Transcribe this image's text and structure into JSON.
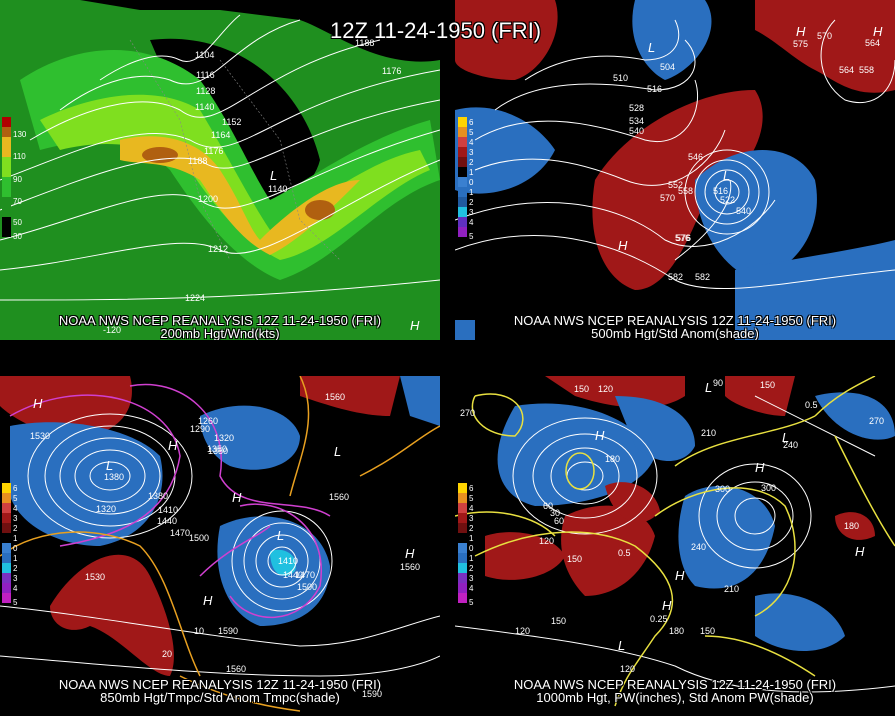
{
  "title": "12Z 11-24-1950 (FRI)",
  "panels": [
    {
      "source": "NOAA NWS NCEP REANALYSIS 12Z 11-24-1950 (FRI)",
      "field": "200mb Hgt/Wnd(kts)",
      "colorbar": [
        "130",
        "110",
        "90",
        "70",
        "50",
        "30"
      ],
      "contour_labels": [
        "1104",
        "1116",
        "1128",
        "1140",
        "1152",
        "1164",
        "1176",
        "1188",
        "1200",
        "1212",
        "1224",
        "1176",
        "1188",
        "1140"
      ],
      "lon_labels": [
        "-120"
      ],
      "colors": {
        "bg": "#000000",
        "c1": "#1f8f1f",
        "c2": "#2fbf2f",
        "c3": "#7fdf1f",
        "c4": "#e8b820",
        "c5": "#b06010"
      }
    },
    {
      "source": "NOAA NWS NCEP REANALYSIS 12Z 11-24-1950 (FRI)",
      "field": "500mb Hgt/Std Anom(shade)",
      "colorbar": [
        "6",
        "5",
        "4",
        "3",
        "2",
        "1",
        "0",
        "1",
        "2",
        "3",
        "4",
        "5"
      ],
      "contour_labels": [
        "510",
        "516",
        "528",
        "534",
        "540",
        "546",
        "552",
        "558",
        "570",
        "576",
        "582",
        "564",
        "558",
        "570",
        "516",
        "522",
        "540",
        "576",
        "582",
        "575",
        "504",
        "564"
      ],
      "colors": {
        "pos": "#a01818",
        "neg": "#2a6fbf"
      }
    },
    {
      "source": "NOAA NWS NCEP REANALYSIS 12Z 11-24-1950 (FRI)",
      "field": "850mb Hgt/Tmpc/Std Anom Tmpc(shade)",
      "colorbar": [
        "6",
        "5",
        "4",
        "3",
        "2",
        "1",
        "0",
        "1",
        "2",
        "3",
        "4",
        "5"
      ],
      "contour_labels": [
        "1530",
        "1260",
        "1290",
        "1320",
        "1350",
        "1380",
        "1410",
        "1440",
        "1470",
        "1500",
        "1530",
        "1560",
        "1590",
        "1560",
        "1560",
        "1380",
        "1410",
        "1440",
        "1470",
        "1500",
        "1320",
        "1350",
        "10",
        "20",
        "1560",
        "1590"
      ],
      "colors": {
        "pos": "#a01818",
        "neg": "#2a6fbf",
        "temp": "#d040d0"
      }
    },
    {
      "source": "NOAA NWS NCEP REANALYSIS 12Z 11-24-1950 (FRI)",
      "field": "1000mb Hgt, PW(inches), Std Anom PW(shade)",
      "colorbar": [
        "6",
        "5",
        "4",
        "3",
        "2",
        "1",
        "0",
        "1",
        "2",
        "3",
        "4",
        "5"
      ],
      "contour_labels": [
        "270",
        "150",
        "120",
        "180",
        "150",
        "120",
        "210",
        "240",
        "300",
        "240",
        "180",
        "60",
        "30",
        "150",
        "120",
        "0.5",
        "0.25",
        "0.5",
        "210",
        "150",
        "60",
        "90",
        "120",
        "180",
        "150",
        "300",
        "270"
      ],
      "colors": {
        "pos": "#a01818",
        "neg": "#2a6fbf",
        "pw": "#e8e040"
      }
    }
  ]
}
